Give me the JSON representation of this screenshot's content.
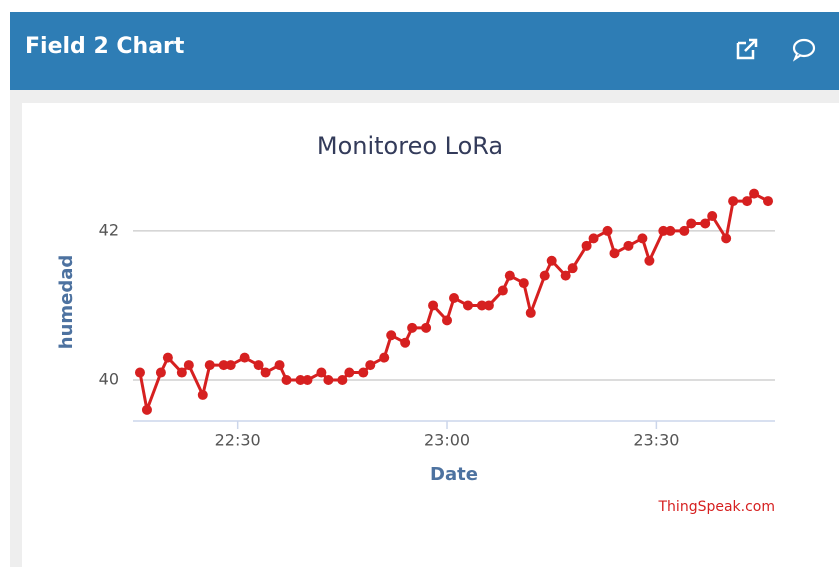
{
  "header": {
    "title": "Field 2 Chart"
  },
  "chart_data": {
    "type": "line",
    "title": "Monitoreo LoRa",
    "x_label": "Date",
    "y_label": "humedad",
    "credit": "ThingSpeak.com",
    "x": [
      "22:16",
      "22:17",
      "22:19",
      "22:20",
      "22:22",
      "22:23",
      "22:25",
      "22:26",
      "22:28",
      "22:29",
      "22:31",
      "22:33",
      "22:34",
      "22:36",
      "22:37",
      "22:39",
      "22:40",
      "22:42",
      "22:43",
      "22:45",
      "22:46",
      "22:48",
      "22:49",
      "22:51",
      "22:52",
      "22:54",
      "22:55",
      "22:57",
      "22:58",
      "23:00",
      "23:01",
      "23:03",
      "23:05",
      "23:06",
      "23:08",
      "23:09",
      "23:11",
      "23:12",
      "23:14",
      "23:15",
      "23:17",
      "23:18",
      "23:20",
      "23:21",
      "23:23",
      "23:24",
      "23:26",
      "23:28",
      "23:29",
      "23:31",
      "23:32",
      "23:34",
      "23:35",
      "23:37",
      "23:38",
      "23:40",
      "23:41",
      "23:43",
      "23:44",
      "23:46"
    ],
    "series": [
      {
        "name": "humedad",
        "color": "#d62020",
        "values": [
          40.1,
          39.6,
          40.1,
          40.3,
          40.1,
          40.2,
          39.8,
          40.2,
          40.2,
          40.2,
          40.3,
          40.2,
          40.1,
          40.2,
          40.0,
          40.0,
          40.0,
          40.1,
          40.0,
          40.0,
          40.1,
          40.1,
          40.2,
          40.3,
          40.6,
          40.5,
          40.7,
          40.7,
          41.0,
          40.8,
          41.1,
          41.0,
          41.0,
          41.0,
          41.2,
          41.4,
          41.3,
          40.9,
          41.4,
          41.6,
          41.4,
          41.5,
          41.8,
          41.9,
          42.0,
          41.7,
          41.8,
          41.9,
          41.6,
          42.0,
          42.0,
          42.0,
          42.1,
          42.1,
          42.2,
          41.9,
          42.4,
          42.4,
          42.5,
          42.4
        ]
      }
    ],
    "xlim": [
      "22:15",
      "23:47"
    ],
    "xticks": [
      "22:30",
      "23:00",
      "23:30"
    ],
    "ylim": [
      39.45,
      42.75
    ],
    "yticks": [
      40,
      42
    ],
    "grid": true
  }
}
